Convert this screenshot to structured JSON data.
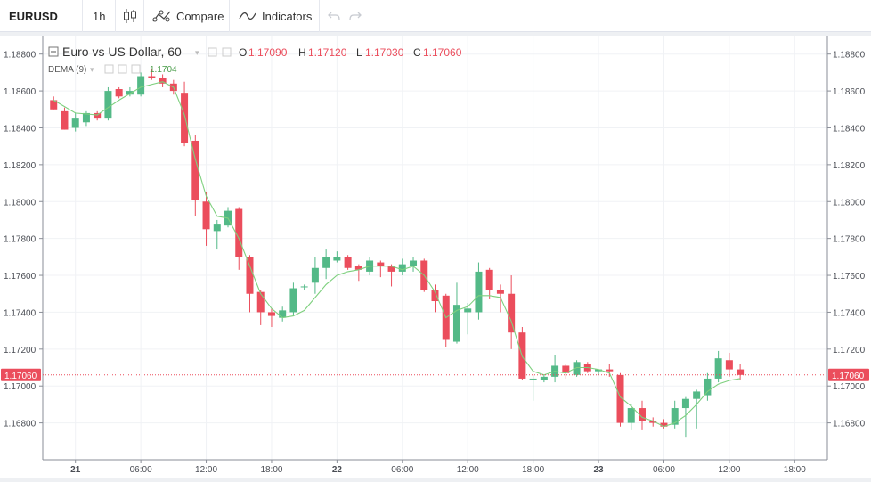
{
  "toolbar": {
    "symbol": "EURUSD",
    "interval": "1h",
    "compare_label": "Compare",
    "indicators_label": "Indicators"
  },
  "legend": {
    "title": "Euro vs US Dollar, 60",
    "open_label": "O",
    "open": "1.17090",
    "high_label": "H",
    "high": "1.17120",
    "low_label": "L",
    "low": "1.17030",
    "close_label": "C",
    "close": "1.17060",
    "indicator_name": "DEMA (9)",
    "indicator_value": "1.1704"
  },
  "price_label": "1.17060",
  "colors": {
    "up": "#53b987",
    "down": "#eb4d5c",
    "dema": "#7ed07e",
    "price_line": "#eb4d5c"
  },
  "chart_data": {
    "type": "candlestick",
    "ylim": [
      1.166,
      1.189
    ],
    "y_ticks": [
      "1.18800",
      "1.18600",
      "1.18400",
      "1.18200",
      "1.18000",
      "1.17800",
      "1.17600",
      "1.17400",
      "1.17200",
      "1.17000",
      "1.16800"
    ],
    "x_ticks": [
      {
        "label": "21",
        "hour": 0,
        "bold": true
      },
      {
        "label": "06:00",
        "hour": 6
      },
      {
        "label": "12:00",
        "hour": 12
      },
      {
        "label": "18:00",
        "hour": 18
      },
      {
        "label": "22",
        "hour": 24,
        "bold": true
      },
      {
        "label": "06:00",
        "hour": 30
      },
      {
        "label": "12:00",
        "hour": 36
      },
      {
        "label": "18:00",
        "hour": 42
      },
      {
        "label": "23",
        "hour": 48,
        "bold": true
      },
      {
        "label": "06:00",
        "hour": 54
      },
      {
        "label": "12:00",
        "hour": 60
      },
      {
        "label": "18:00",
        "hour": 66
      }
    ],
    "x_range_hours": [
      -3,
      69
    ],
    "candles": [
      {
        "t": -2,
        "o": 1.1855,
        "h": 1.1857,
        "l": 1.185,
        "c": 1.185
      },
      {
        "t": -1,
        "o": 1.1849,
        "h": 1.1851,
        "l": 1.1839,
        "c": 1.1839
      },
      {
        "t": 0,
        "o": 1.184,
        "h": 1.1848,
        "l": 1.1838,
        "c": 1.1845
      },
      {
        "t": 1,
        "o": 1.1843,
        "h": 1.1849,
        "l": 1.1841,
        "c": 1.1848
      },
      {
        "t": 2,
        "o": 1.1848,
        "h": 1.1849,
        "l": 1.1844,
        "c": 1.1845
      },
      {
        "t": 3,
        "o": 1.1845,
        "h": 1.1862,
        "l": 1.1844,
        "c": 1.186
      },
      {
        "t": 4,
        "o": 1.1861,
        "h": 1.1862,
        "l": 1.1856,
        "c": 1.1857
      },
      {
        "t": 5,
        "o": 1.1858,
        "h": 1.1862,
        "l": 1.1857,
        "c": 1.186
      },
      {
        "t": 6,
        "o": 1.1858,
        "h": 1.187,
        "l": 1.1857,
        "c": 1.1868
      },
      {
        "t": 7,
        "o": 1.1868,
        "h": 1.1872,
        "l": 1.1866,
        "c": 1.1867
      },
      {
        "t": 8,
        "o": 1.1867,
        "h": 1.1869,
        "l": 1.1862,
        "c": 1.1864
      },
      {
        "t": 9,
        "o": 1.1864,
        "h": 1.1866,
        "l": 1.1858,
        "c": 1.186
      },
      {
        "t": 10,
        "o": 1.1859,
        "h": 1.1865,
        "l": 1.183,
        "c": 1.1832
      },
      {
        "t": 11,
        "o": 1.1833,
        "h": 1.1836,
        "l": 1.1792,
        "c": 1.1801
      },
      {
        "t": 12,
        "o": 1.18,
        "h": 1.1805,
        "l": 1.1776,
        "c": 1.1785
      },
      {
        "t": 13,
        "o": 1.1784,
        "h": 1.179,
        "l": 1.1774,
        "c": 1.1788
      },
      {
        "t": 14,
        "o": 1.1787,
        "h": 1.1797,
        "l": 1.1786,
        "c": 1.1795
      },
      {
        "t": 15,
        "o": 1.1796,
        "h": 1.1797,
        "l": 1.1763,
        "c": 1.177
      },
      {
        "t": 16,
        "o": 1.177,
        "h": 1.1771,
        "l": 1.174,
        "c": 1.175
      },
      {
        "t": 17,
        "o": 1.1751,
        "h": 1.1752,
        "l": 1.1733,
        "c": 1.174
      },
      {
        "t": 18,
        "o": 1.174,
        "h": 1.1742,
        "l": 1.1732,
        "c": 1.1738
      },
      {
        "t": 19,
        "o": 1.1737,
        "h": 1.1743,
        "l": 1.1735,
        "c": 1.1741
      },
      {
        "t": 20,
        "o": 1.174,
        "h": 1.1756,
        "l": 1.1738,
        "c": 1.1753
      },
      {
        "t": 21,
        "o": 1.1754,
        "h": 1.1755,
        "l": 1.1752,
        "c": 1.1754
      },
      {
        "t": 22,
        "o": 1.1756,
        "h": 1.177,
        "l": 1.175,
        "c": 1.1764
      },
      {
        "t": 23,
        "o": 1.1764,
        "h": 1.1774,
        "l": 1.1758,
        "c": 1.177
      },
      {
        "t": 24,
        "o": 1.1768,
        "h": 1.1773,
        "l": 1.1767,
        "c": 1.177
      },
      {
        "t": 25,
        "o": 1.177,
        "h": 1.1771,
        "l": 1.1763,
        "c": 1.1764
      },
      {
        "t": 26,
        "o": 1.1765,
        "h": 1.1766,
        "l": 1.1757,
        "c": 1.1763
      },
      {
        "t": 27,
        "o": 1.1762,
        "h": 1.177,
        "l": 1.176,
        "c": 1.1768
      },
      {
        "t": 28,
        "o": 1.1767,
        "h": 1.1768,
        "l": 1.1759,
        "c": 1.1765
      },
      {
        "t": 29,
        "o": 1.1765,
        "h": 1.1766,
        "l": 1.1754,
        "c": 1.1762
      },
      {
        "t": 30,
        "o": 1.1762,
        "h": 1.1769,
        "l": 1.176,
        "c": 1.1766
      },
      {
        "t": 31,
        "o": 1.1765,
        "h": 1.177,
        "l": 1.1762,
        "c": 1.1768
      },
      {
        "t": 32,
        "o": 1.1768,
        "h": 1.1769,
        "l": 1.1751,
        "c": 1.1752
      },
      {
        "t": 33,
        "o": 1.1752,
        "h": 1.1755,
        "l": 1.174,
        "c": 1.1746
      },
      {
        "t": 34,
        "o": 1.1749,
        "h": 1.175,
        "l": 1.1721,
        "c": 1.1725
      },
      {
        "t": 35,
        "o": 1.1724,
        "h": 1.1756,
        "l": 1.1723,
        "c": 1.1744
      },
      {
        "t": 36,
        "o": 1.174,
        "h": 1.1745,
        "l": 1.1728,
        "c": 1.1742
      },
      {
        "t": 37,
        "o": 1.174,
        "h": 1.1767,
        "l": 1.1736,
        "c": 1.1762
      },
      {
        "t": 38,
        "o": 1.1763,
        "h": 1.1764,
        "l": 1.1747,
        "c": 1.1752
      },
      {
        "t": 39,
        "o": 1.1752,
        "h": 1.1755,
        "l": 1.174,
        "c": 1.175
      },
      {
        "t": 40,
        "o": 1.175,
        "h": 1.176,
        "l": 1.172,
        "c": 1.1729
      },
      {
        "t": 41,
        "o": 1.1729,
        "h": 1.1732,
        "l": 1.1703,
        "c": 1.1704
      },
      {
        "t": 42,
        "o": 1.1704,
        "h": 1.1706,
        "l": 1.1692,
        "c": 1.1704
      },
      {
        "t": 43,
        "o": 1.1703,
        "h": 1.1706,
        "l": 1.1702,
        "c": 1.1705
      },
      {
        "t": 44,
        "o": 1.1705,
        "h": 1.1717,
        "l": 1.1702,
        "c": 1.1711
      },
      {
        "t": 45,
        "o": 1.1711,
        "h": 1.1712,
        "l": 1.1704,
        "c": 1.1707
      },
      {
        "t": 46,
        "o": 1.1706,
        "h": 1.1714,
        "l": 1.1705,
        "c": 1.1713
      },
      {
        "t": 47,
        "o": 1.1712,
        "h": 1.1713,
        "l": 1.1707,
        "c": 1.1708
      },
      {
        "t": 48,
        "o": 1.1708,
        "h": 1.1709,
        "l": 1.1706,
        "c": 1.1709
      },
      {
        "t": 49,
        "o": 1.1709,
        "h": 1.1712,
        "l": 1.1705,
        "c": 1.1708
      },
      {
        "t": 50,
        "o": 1.1706,
        "h": 1.1707,
        "l": 1.1678,
        "c": 1.168
      },
      {
        "t": 51,
        "o": 1.168,
        "h": 1.169,
        "l": 1.1676,
        "c": 1.1688
      },
      {
        "t": 52,
        "o": 1.1688,
        "h": 1.1692,
        "l": 1.1676,
        "c": 1.1681
      },
      {
        "t": 53,
        "o": 1.1681,
        "h": 1.1683,
        "l": 1.1678,
        "c": 1.168
      },
      {
        "t": 54,
        "o": 1.168,
        "h": 1.1682,
        "l": 1.1677,
        "c": 1.1678
      },
      {
        "t": 55,
        "o": 1.1679,
        "h": 1.1692,
        "l": 1.1677,
        "c": 1.1688
      },
      {
        "t": 56,
        "o": 1.1688,
        "h": 1.1694,
        "l": 1.1672,
        "c": 1.1693
      },
      {
        "t": 57,
        "o": 1.1693,
        "h": 1.1698,
        "l": 1.1677,
        "c": 1.1697
      },
      {
        "t": 58,
        "o": 1.1695,
        "h": 1.1707,
        "l": 1.1692,
        "c": 1.1704
      },
      {
        "t": 59,
        "o": 1.1704,
        "h": 1.1719,
        "l": 1.1702,
        "c": 1.1715
      },
      {
        "t": 60,
        "o": 1.1714,
        "h": 1.1718,
        "l": 1.1705,
        "c": 1.1709
      },
      {
        "t": 61,
        "o": 1.1709,
        "h": 1.1712,
        "l": 1.1703,
        "c": 1.1706
      }
    ],
    "dema": [
      {
        "t": -2,
        "v": 1.1855
      },
      {
        "t": 0,
        "v": 1.1848
      },
      {
        "t": 2,
        "v": 1.1847
      },
      {
        "t": 4,
        "v": 1.1855
      },
      {
        "t": 6,
        "v": 1.1862
      },
      {
        "t": 8,
        "v": 1.1865
      },
      {
        "t": 9,
        "v": 1.1862
      },
      {
        "t": 10,
        "v": 1.1847
      },
      {
        "t": 11,
        "v": 1.1823
      },
      {
        "t": 12,
        "v": 1.1803
      },
      {
        "t": 13,
        "v": 1.1792
      },
      {
        "t": 14,
        "v": 1.1791
      },
      {
        "t": 15,
        "v": 1.178
      },
      {
        "t": 16,
        "v": 1.1765
      },
      {
        "t": 17,
        "v": 1.175
      },
      {
        "t": 18,
        "v": 1.1742
      },
      {
        "t": 19,
        "v": 1.1737
      },
      {
        "t": 20,
        "v": 1.1738
      },
      {
        "t": 21,
        "v": 1.1741
      },
      {
        "t": 22,
        "v": 1.1748
      },
      {
        "t": 23,
        "v": 1.1755
      },
      {
        "t": 24,
        "v": 1.176
      },
      {
        "t": 25,
        "v": 1.1762
      },
      {
        "t": 26,
        "v": 1.1763
      },
      {
        "t": 27,
        "v": 1.1765
      },
      {
        "t": 28,
        "v": 1.1765
      },
      {
        "t": 29,
        "v": 1.1765
      },
      {
        "t": 30,
        "v": 1.1763
      },
      {
        "t": 31,
        "v": 1.1765
      },
      {
        "t": 32,
        "v": 1.176
      },
      {
        "t": 33,
        "v": 1.1751
      },
      {
        "t": 34,
        "v": 1.1737
      },
      {
        "t": 35,
        "v": 1.1741
      },
      {
        "t": 36,
        "v": 1.1743
      },
      {
        "t": 37,
        "v": 1.1749
      },
      {
        "t": 38,
        "v": 1.1749
      },
      {
        "t": 39,
        "v": 1.1748
      },
      {
        "t": 40,
        "v": 1.1735
      },
      {
        "t": 41,
        "v": 1.1716
      },
      {
        "t": 42,
        "v": 1.1708
      },
      {
        "t": 43,
        "v": 1.1706
      },
      {
        "t": 44,
        "v": 1.1708
      },
      {
        "t": 45,
        "v": 1.1707
      },
      {
        "t": 46,
        "v": 1.171
      },
      {
        "t": 47,
        "v": 1.171
      },
      {
        "t": 48,
        "v": 1.1709
      },
      {
        "t": 49,
        "v": 1.1707
      },
      {
        "t": 50,
        "v": 1.1694
      },
      {
        "t": 51,
        "v": 1.1689
      },
      {
        "t": 52,
        "v": 1.1683
      },
      {
        "t": 53,
        "v": 1.1681
      },
      {
        "t": 54,
        "v": 1.1678
      },
      {
        "t": 55,
        "v": 1.168
      },
      {
        "t": 56,
        "v": 1.1684
      },
      {
        "t": 57,
        "v": 1.169
      },
      {
        "t": 58,
        "v": 1.1697
      },
      {
        "t": 59,
        "v": 1.1701
      },
      {
        "t": 60,
        "v": 1.1703
      },
      {
        "t": 61,
        "v": 1.1704
      }
    ],
    "last_price": 1.1706
  }
}
